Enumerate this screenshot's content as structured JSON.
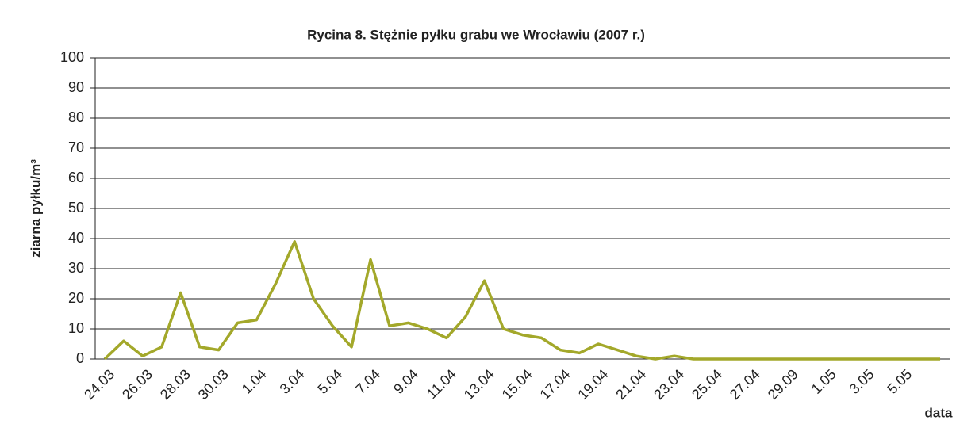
{
  "chart_data": {
    "type": "line",
    "title": "Rycina 8. Stężnie pyłku grabu we Wrocławiu (2007 r.)",
    "y_label": "ziarna pyłku/m³",
    "x_label": "data",
    "categories": [
      "24.03",
      null,
      "26.03",
      null,
      "28.03",
      null,
      "30.03",
      null,
      "1.04",
      null,
      "3.04",
      null,
      "5.04",
      null,
      "7.04",
      null,
      "9.04",
      null,
      "11.04",
      null,
      "13.04",
      null,
      "15.04",
      null,
      "17.04",
      null,
      "19.04",
      null,
      "21.04",
      null,
      "23.04",
      null,
      "25.04",
      null,
      "27.04",
      null,
      "29.09",
      null,
      "1.05",
      null,
      "3.05",
      null,
      "5.05",
      null,
      null
    ],
    "series": [
      {
        "name": "ziarna pyłku",
        "color": "#a3a82a",
        "values": [
          0,
          6,
          1,
          4,
          22,
          4,
          3,
          12,
          13,
          25,
          39,
          20,
          11,
          4,
          33,
          11,
          12,
          10,
          7,
          14,
          26,
          10,
          8,
          7,
          3,
          2,
          5,
          3,
          1,
          0,
          1,
          0,
          0,
          0,
          0,
          0,
          0,
          0,
          0,
          0,
          0,
          0,
          0,
          0,
          0
        ]
      }
    ],
    "ylim": [
      0,
      100
    ],
    "yticks": [
      0,
      10,
      20,
      30,
      40,
      50,
      60,
      70,
      80,
      90,
      100
    ],
    "grid": true
  }
}
